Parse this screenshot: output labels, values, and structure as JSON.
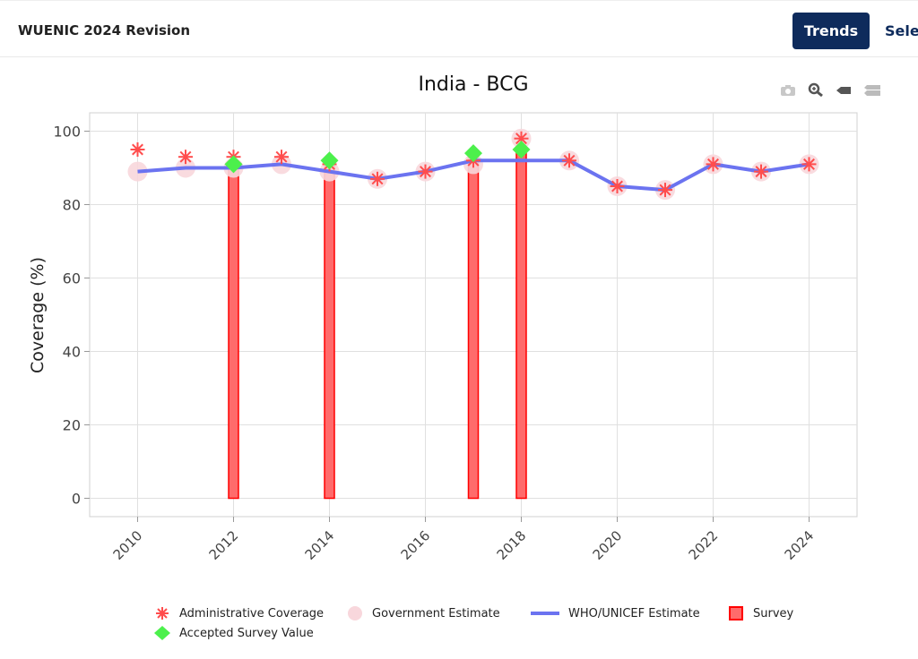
{
  "header": {
    "app_title": "WUENIC 2024 Revision",
    "trends_label": "Trends",
    "select_label": "Select"
  },
  "icons": [
    "camera-icon",
    "zoom-icon",
    "tag-icon",
    "compare-icon"
  ],
  "colors": {
    "header_bg": "#0e2b5c",
    "admin": "#ff4d4d",
    "gov": "#f8d7dc",
    "who": "#6b73f0",
    "survey_fill": "#ff6b6b",
    "survey_edge": "#ff0000",
    "accepted": "#4cf04c"
  },
  "chart_data": {
    "type": "line",
    "title": "India - BCG",
    "xlabel": "",
    "ylabel": "Coverage (%)",
    "xlim": [
      2009,
      2025
    ],
    "ylim": [
      -5,
      105
    ],
    "xticks": [
      2010,
      2012,
      2014,
      2016,
      2018,
      2020,
      2022,
      2024
    ],
    "yticks": [
      0,
      20,
      40,
      60,
      80,
      100
    ],
    "grid": true,
    "legend_position": "bottom",
    "series": [
      {
        "name": "Administrative Coverage",
        "kind": "scatter",
        "marker": "asterisk",
        "x": [
          2010,
          2011,
          2012,
          2013,
          2014,
          2015,
          2016,
          2017,
          2018,
          2019,
          2020,
          2021,
          2022,
          2023,
          2024
        ],
        "y": [
          95,
          93,
          93,
          93,
          91,
          87,
          89,
          92,
          98,
          92,
          85,
          84,
          91,
          89,
          91
        ]
      },
      {
        "name": "Government Estimate",
        "kind": "scatter",
        "marker": "circle",
        "x": [
          2010,
          2011,
          2012,
          2013,
          2014,
          2015,
          2016,
          2017,
          2018,
          2019,
          2020,
          2021,
          2022,
          2023,
          2024
        ],
        "y": [
          89,
          90,
          90,
          91,
          89,
          87,
          89,
          91,
          98,
          92,
          85,
          84,
          91,
          89,
          91
        ]
      },
      {
        "name": "WHO/UNICEF Estimate",
        "kind": "line",
        "x": [
          2010,
          2011,
          2012,
          2013,
          2014,
          2015,
          2016,
          2017,
          2018,
          2019,
          2020,
          2021,
          2022,
          2023,
          2024
        ],
        "y": [
          89,
          90,
          90,
          91,
          89,
          87,
          89,
          92,
          92,
          92,
          85,
          84,
          91,
          89,
          91
        ]
      },
      {
        "name": "Survey",
        "kind": "bar",
        "x": [
          2012,
          2014,
          2017,
          2018
        ],
        "y": [
          91,
          92,
          94,
          95
        ]
      },
      {
        "name": "Accepted Survey Value",
        "kind": "scatter",
        "marker": "diamond",
        "x": [
          2012,
          2014,
          2017,
          2018
        ],
        "y": [
          91,
          92,
          94,
          95
        ]
      }
    ]
  }
}
